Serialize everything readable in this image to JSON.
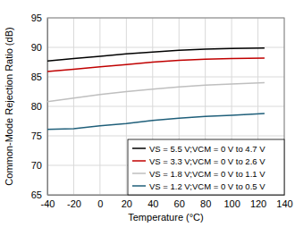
{
  "chart_data": {
    "type": "line",
    "x_label": "Temperature (°C)",
    "y_label": "Common-Mode Rejection Ratio (dB)",
    "x": [
      -40,
      -20,
      0,
      20,
      40,
      60,
      80,
      100,
      125
    ],
    "series": [
      {
        "name": "VS = 5.5 V;VCM = 0 V to 4.7 V",
        "color": "#000000",
        "values": [
          87.7,
          88.1,
          88.5,
          88.9,
          89.2,
          89.5,
          89.7,
          89.8,
          89.9
        ]
      },
      {
        "name": "VS = 3.3 V;VCM = 0 V to 2.6 V",
        "color": "#c00000",
        "values": [
          85.9,
          86.3,
          86.7,
          87.1,
          87.5,
          87.8,
          88.0,
          88.1,
          88.2
        ]
      },
      {
        "name": "VS = 1.8 V;VCM = 0 V to 1.1 V",
        "color": "#bfbfbf",
        "values": [
          80.8,
          81.4,
          82.0,
          82.5,
          82.9,
          83.3,
          83.6,
          83.8,
          84.0
        ]
      },
      {
        "name": "VS = 1.2 V;VCM = 0 V to 0.5 V",
        "color": "#1f5f7a",
        "values": [
          76.1,
          76.2,
          76.7,
          77.1,
          77.6,
          78.0,
          78.3,
          78.5,
          78.8
        ]
      }
    ],
    "xlim": [
      -40,
      140
    ],
    "xticks": [
      -40,
      -20,
      0,
      20,
      40,
      60,
      80,
      100,
      120,
      140
    ],
    "ylim": [
      65,
      95
    ],
    "yticks": [
      65,
      70,
      75,
      80,
      85,
      90,
      95
    ],
    "grid": true,
    "legend": "lower right"
  }
}
